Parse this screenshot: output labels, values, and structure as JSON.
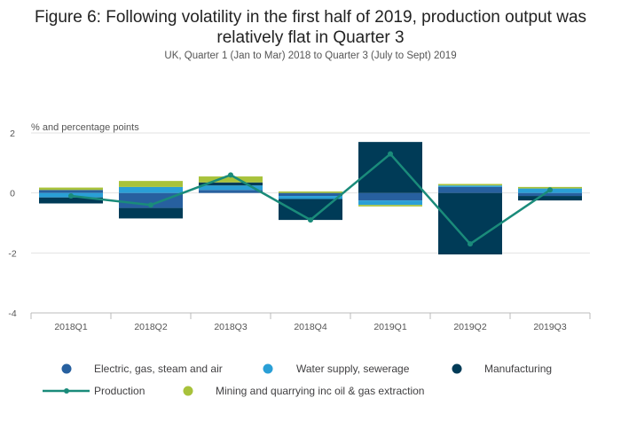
{
  "title": "Figure 6: Following volatility in the first half of 2019, production output was relatively flat in Quarter 3",
  "subtitle": "UK, Quarter 1 (Jan to Mar) 2018 to Quarter 3 (July to Sept) 2019",
  "colors": {
    "electric": "#27609f",
    "water": "#2a9fd6",
    "manufacturing": "#003b57",
    "mining": "#a8c23b",
    "production": "#1a8b7a",
    "grid": "#e2e2e2",
    "axis": "#bbbbbb"
  },
  "chart_data": {
    "type": "bar",
    "stacked": true,
    "ylabel": "% and percentage points",
    "ylim": [
      -4,
      2
    ],
    "yticks": [
      2,
      0,
      -2,
      -4
    ],
    "categories": [
      "2018Q1",
      "2018Q2",
      "2018Q3",
      "2018Q4",
      "2019Q1",
      "2019Q2",
      "2019Q3"
    ],
    "series": [
      {
        "name": "Electric, gas, steam and air",
        "key": "electric",
        "kind": "bar",
        "values": [
          0.1,
          -0.5,
          0.1,
          -0.1,
          -0.25,
          0.2,
          -0.1
        ]
      },
      {
        "name": "Water supply, sewerage",
        "key": "water",
        "kind": "bar",
        "values": [
          -0.15,
          0.2,
          0.15,
          -0.1,
          -0.15,
          0.05,
          0.15
        ]
      },
      {
        "name": "Manufacturing",
        "key": "manufacturing",
        "kind": "bar",
        "values": [
          -0.2,
          -0.35,
          0.1,
          -0.7,
          1.7,
          -2.05,
          -0.15
        ]
      },
      {
        "name": "Mining and quarrying inc oil & gas extraction",
        "key": "mining",
        "kind": "bar",
        "values": [
          0.08,
          0.2,
          0.2,
          0.05,
          -0.05,
          0.05,
          0.05
        ]
      },
      {
        "name": "Production",
        "key": "production",
        "kind": "line",
        "values": [
          -0.1,
          -0.4,
          0.6,
          -0.9,
          1.3,
          -1.7,
          0.1
        ]
      }
    ],
    "legend_position": "bottom",
    "grid": true
  }
}
